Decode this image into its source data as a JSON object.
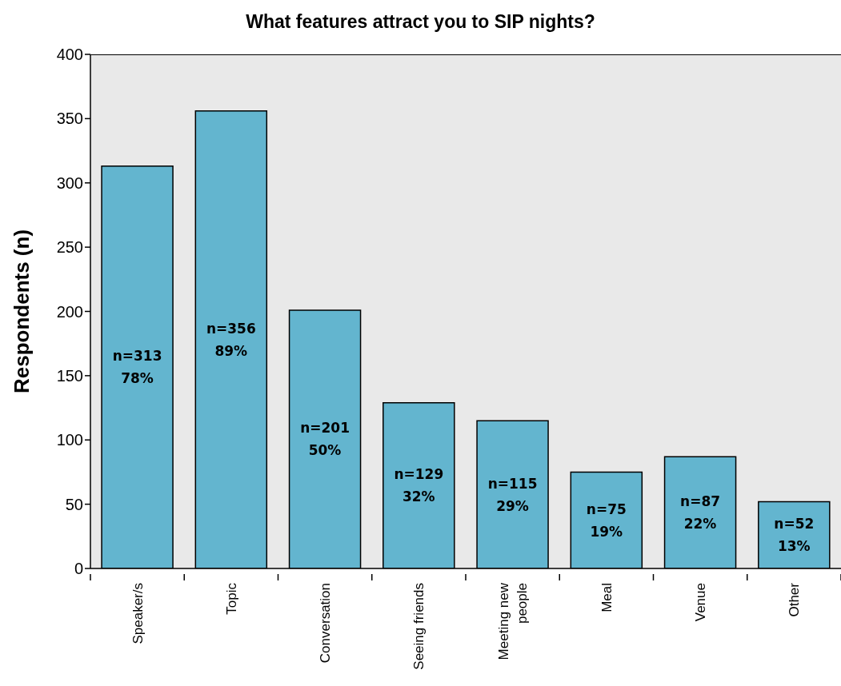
{
  "chart_data": {
    "type": "bar",
    "title": "What features attract you to SIP nights?",
    "ylabel": "Respondents (n)",
    "categories": [
      "Speaker/s",
      "Topic",
      "Conversation",
      "Seeing friends",
      "Meeting new people",
      "Meal",
      "Venue",
      "Other"
    ],
    "values": [
      313,
      356,
      201,
      129,
      115,
      75,
      87,
      52
    ],
    "value_labels": [
      "n=313\n78%",
      "n=356\n89%",
      "n=201\n50%",
      "n=129\n32%",
      "n=115\n29%",
      "n=75\n19%",
      "n=87\n22%",
      "n=52\n13%"
    ],
    "color": "#63b5cf",
    "ylim": [
      0,
      400
    ],
    "yticks": [
      0,
      50,
      100,
      150,
      200,
      250,
      300,
      350,
      400
    ]
  }
}
